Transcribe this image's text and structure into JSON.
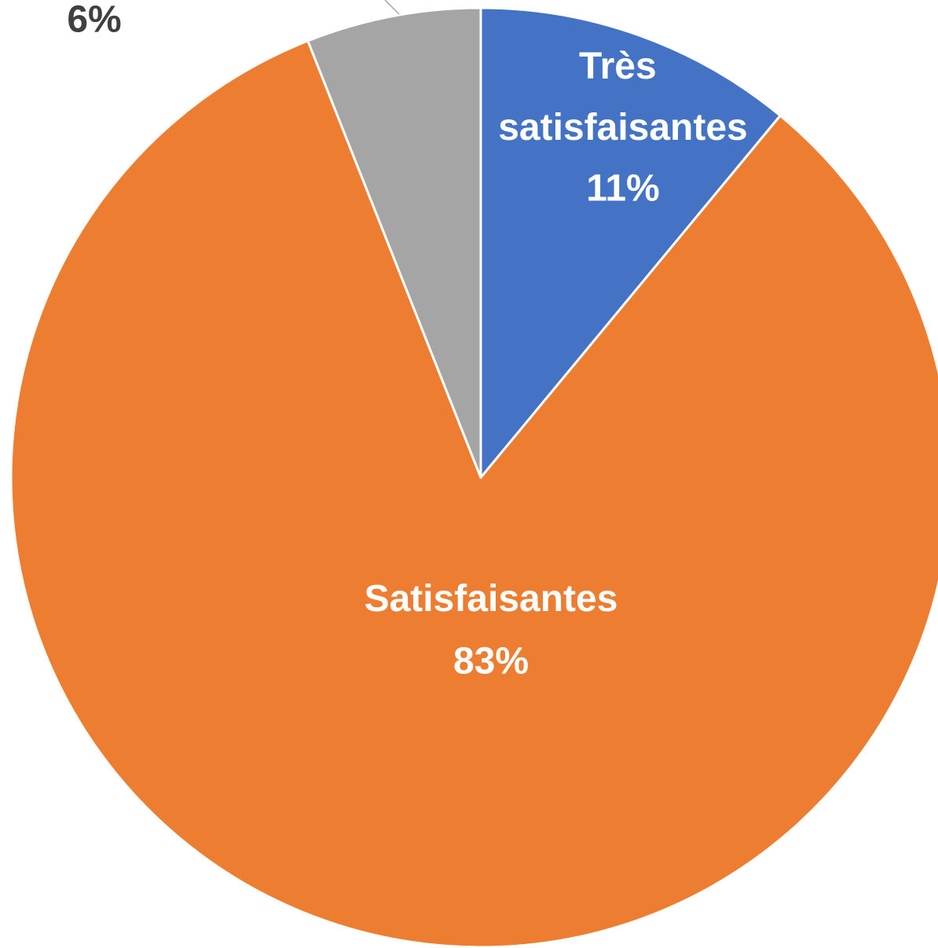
{
  "chart_data": {
    "type": "pie",
    "categories": [
      "Très satisfaisantes",
      "Satisfaisantes",
      null
    ],
    "values": [
      11,
      83,
      6
    ],
    "value_labels": [
      "11%",
      "83%",
      "6%"
    ],
    "colors": [
      "#4472c4",
      "#ed7d31",
      "#a5a5a5"
    ]
  }
}
